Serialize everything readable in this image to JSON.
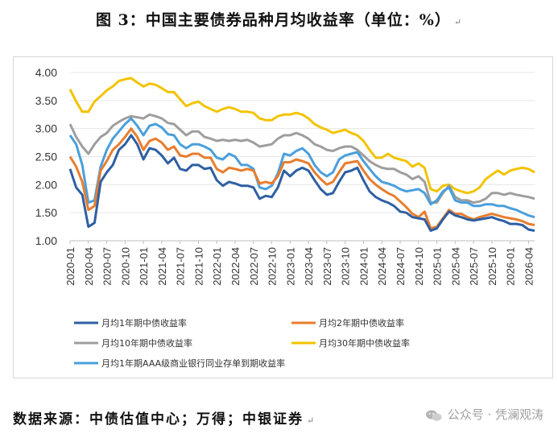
{
  "title": "图 3：中国主要债券品种月均收益率（单位：%）",
  "source": "数据来源：中债估值中心；万得；中银证券",
  "watermark": "公众号 · 凭澜观涛",
  "chart_data": {
    "type": "line",
    "ylim": [
      1.0,
      4.0
    ],
    "yticks": [
      "1.00",
      "1.50",
      "2.00",
      "2.50",
      "3.00",
      "3.50",
      "4.00"
    ],
    "xtick_labels": [
      "2020-01",
      "2020-04",
      "2020-07",
      "2020-10",
      "2021-01",
      "2021-04",
      "2021-07",
      "2021-10",
      "2022-01",
      "2022-04",
      "2022-07",
      "2022-10",
      "2023-01",
      "2023-04",
      "2023-07",
      "2023-10",
      "2024-01",
      "2024-04",
      "2024-07",
      "2024-10",
      "2025-01",
      "2025-04",
      "2025-07",
      "2025-10",
      "2026-01",
      "2026-04"
    ],
    "months": 77,
    "series": [
      {
        "name": "月均1年期中债收益率",
        "color": "#2e5fa3",
        "values": [
          2.28,
          1.95,
          1.82,
          1.25,
          1.32,
          2.05,
          2.22,
          2.35,
          2.62,
          2.72,
          2.88,
          2.72,
          2.45,
          2.65,
          2.62,
          2.52,
          2.38,
          2.48,
          2.28,
          2.25,
          2.35,
          2.35,
          2.28,
          2.3,
          2.08,
          1.98,
          2.05,
          2.02,
          1.98,
          1.98,
          1.95,
          1.75,
          1.8,
          1.78,
          1.95,
          2.25,
          2.15,
          2.25,
          2.3,
          2.25,
          2.08,
          1.92,
          1.82,
          1.85,
          2.05,
          2.22,
          2.25,
          2.3,
          2.08,
          1.88,
          1.78,
          1.72,
          1.68,
          1.62,
          1.52,
          1.5,
          1.42,
          1.4,
          1.38,
          1.18,
          1.22,
          1.38,
          1.52,
          1.45,
          1.42,
          1.38,
          1.36,
          1.38,
          1.4,
          1.42,
          1.38,
          1.35,
          1.3,
          1.3,
          1.28,
          1.2,
          1.18
        ]
      },
      {
        "name": "月均2年期中债收益率",
        "color": "#e87d2e",
        "values": [
          2.5,
          2.32,
          2.05,
          1.55,
          1.62,
          2.25,
          2.42,
          2.62,
          2.72,
          2.85,
          3.0,
          2.85,
          2.62,
          2.78,
          2.82,
          2.75,
          2.62,
          2.68,
          2.52,
          2.5,
          2.55,
          2.55,
          2.48,
          2.48,
          2.28,
          2.22,
          2.3,
          2.28,
          2.25,
          2.28,
          2.25,
          2.02,
          2.05,
          2.02,
          2.15,
          2.4,
          2.4,
          2.45,
          2.42,
          2.38,
          2.22,
          2.1,
          2.0,
          2.05,
          2.22,
          2.38,
          2.4,
          2.42,
          2.25,
          2.1,
          2.0,
          1.92,
          1.85,
          1.8,
          1.7,
          1.6,
          1.48,
          1.42,
          1.52,
          1.22,
          1.25,
          1.4,
          1.55,
          1.48,
          1.48,
          1.42,
          1.38,
          1.42,
          1.45,
          1.48,
          1.45,
          1.42,
          1.4,
          1.38,
          1.35,
          1.3,
          1.28
        ]
      },
      {
        "name": "月均10年期中债收益率",
        "color": "#9e9e9e",
        "values": [
          3.08,
          2.85,
          2.68,
          2.55,
          2.72,
          2.85,
          2.92,
          3.05,
          3.12,
          3.18,
          3.22,
          3.2,
          3.18,
          3.25,
          3.22,
          3.18,
          3.1,
          3.08,
          2.98,
          2.88,
          2.95,
          2.95,
          2.85,
          2.82,
          2.78,
          2.8,
          2.78,
          2.8,
          2.78,
          2.8,
          2.75,
          2.68,
          2.7,
          2.72,
          2.82,
          2.88,
          2.88,
          2.92,
          2.88,
          2.82,
          2.72,
          2.68,
          2.62,
          2.6,
          2.65,
          2.68,
          2.68,
          2.62,
          2.52,
          2.42,
          2.35,
          2.3,
          2.28,
          2.28,
          2.22,
          2.18,
          2.1,
          2.15,
          2.05,
          1.68,
          1.68,
          1.85,
          1.98,
          1.78,
          1.72,
          1.72,
          1.68,
          1.7,
          1.75,
          1.85,
          1.85,
          1.82,
          1.85,
          1.82,
          1.8,
          1.78,
          1.75
        ]
      },
      {
        "name": "月均30年期中债收益率",
        "color": "#f2c300",
        "values": [
          3.7,
          3.48,
          3.3,
          3.3,
          3.48,
          3.58,
          3.68,
          3.75,
          3.85,
          3.88,
          3.9,
          3.82,
          3.75,
          3.8,
          3.78,
          3.72,
          3.65,
          3.65,
          3.52,
          3.4,
          3.45,
          3.48,
          3.4,
          3.35,
          3.3,
          3.35,
          3.38,
          3.35,
          3.3,
          3.3,
          3.28,
          3.18,
          3.15,
          3.15,
          3.22,
          3.25,
          3.25,
          3.28,
          3.25,
          3.18,
          3.08,
          3.02,
          2.98,
          2.92,
          2.95,
          2.98,
          2.92,
          2.88,
          2.78,
          2.62,
          2.48,
          2.48,
          2.55,
          2.48,
          2.45,
          2.42,
          2.32,
          2.38,
          2.3,
          1.92,
          1.88,
          1.98,
          2.0,
          1.92,
          1.88,
          1.85,
          1.88,
          1.95,
          2.1,
          2.18,
          2.25,
          2.18,
          2.25,
          2.28,
          2.3,
          2.28,
          2.22
        ]
      },
      {
        "name": "月均1年期AAA级商业银行同业存单到期收益率",
        "color": "#4a9fdc",
        "values": [
          2.88,
          2.72,
          2.35,
          1.68,
          1.72,
          2.32,
          2.62,
          2.82,
          2.95,
          3.08,
          3.18,
          3.05,
          2.88,
          3.05,
          3.08,
          3.02,
          2.9,
          2.88,
          2.72,
          2.65,
          2.72,
          2.72,
          2.68,
          2.62,
          2.48,
          2.45,
          2.55,
          2.5,
          2.35,
          2.35,
          2.28,
          1.95,
          1.92,
          1.98,
          2.2,
          2.55,
          2.52,
          2.6,
          2.65,
          2.55,
          2.35,
          2.22,
          2.15,
          2.22,
          2.45,
          2.52,
          2.55,
          2.58,
          2.42,
          2.28,
          2.15,
          2.05,
          2.02,
          1.98,
          1.92,
          1.88,
          1.9,
          1.92,
          1.85,
          1.65,
          1.72,
          1.88,
          1.95,
          1.72,
          1.68,
          1.68,
          1.62,
          1.62,
          1.65,
          1.65,
          1.62,
          1.62,
          1.58,
          1.55,
          1.5,
          1.45,
          1.42
        ]
      }
    ],
    "legend_placement": "bottom"
  }
}
